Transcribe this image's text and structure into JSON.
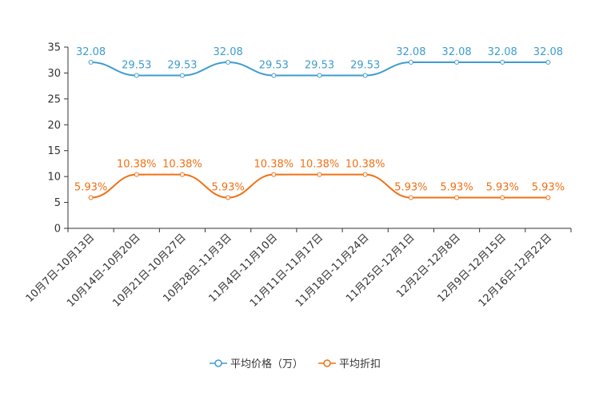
{
  "chart_data": {
    "type": "line",
    "categories": [
      "10月7日-10月13日",
      "10月14日-10月20日",
      "10月21日-10月27日",
      "10月28日-11月3日",
      "11月4日-11月10日",
      "11月11日-11月17日",
      "11月18日-11月24日",
      "11月25日-12月1日",
      "12月2日-12月8日",
      "12月9日-12月15日",
      "12月16日-12月22日"
    ],
    "series": [
      {
        "name": "平均价格（万）",
        "color": "#3d9ccf",
        "values": [
          32.08,
          29.53,
          29.53,
          32.08,
          29.53,
          29.53,
          29.53,
          32.08,
          32.08,
          32.08,
          32.08
        ],
        "labels": [
          "32.08",
          "29.53",
          "29.53",
          "32.08",
          "29.53",
          "29.53",
          "29.53",
          "32.08",
          "32.08",
          "32.08",
          "32.08"
        ]
      },
      {
        "name": "平均折扣",
        "color": "#f07014",
        "values": [
          5.93,
          10.38,
          10.38,
          5.93,
          10.38,
          10.38,
          10.38,
          5.93,
          5.93,
          5.93,
          5.93
        ],
        "labels": [
          "5.93%",
          "10.38%",
          "10.38%",
          "5.93%",
          "10.38%",
          "10.38%",
          "10.38%",
          "5.93%",
          "5.93%",
          "5.93%",
          "5.93%"
        ]
      }
    ],
    "y_ticks": [
      "0",
      "5",
      "10",
      "15",
      "20",
      "25",
      "30",
      "35"
    ],
    "ylim": [
      0,
      35
    ],
    "title": "",
    "xlabel": "",
    "ylabel": "",
    "legend_position": "bottom-center",
    "grid": false
  }
}
